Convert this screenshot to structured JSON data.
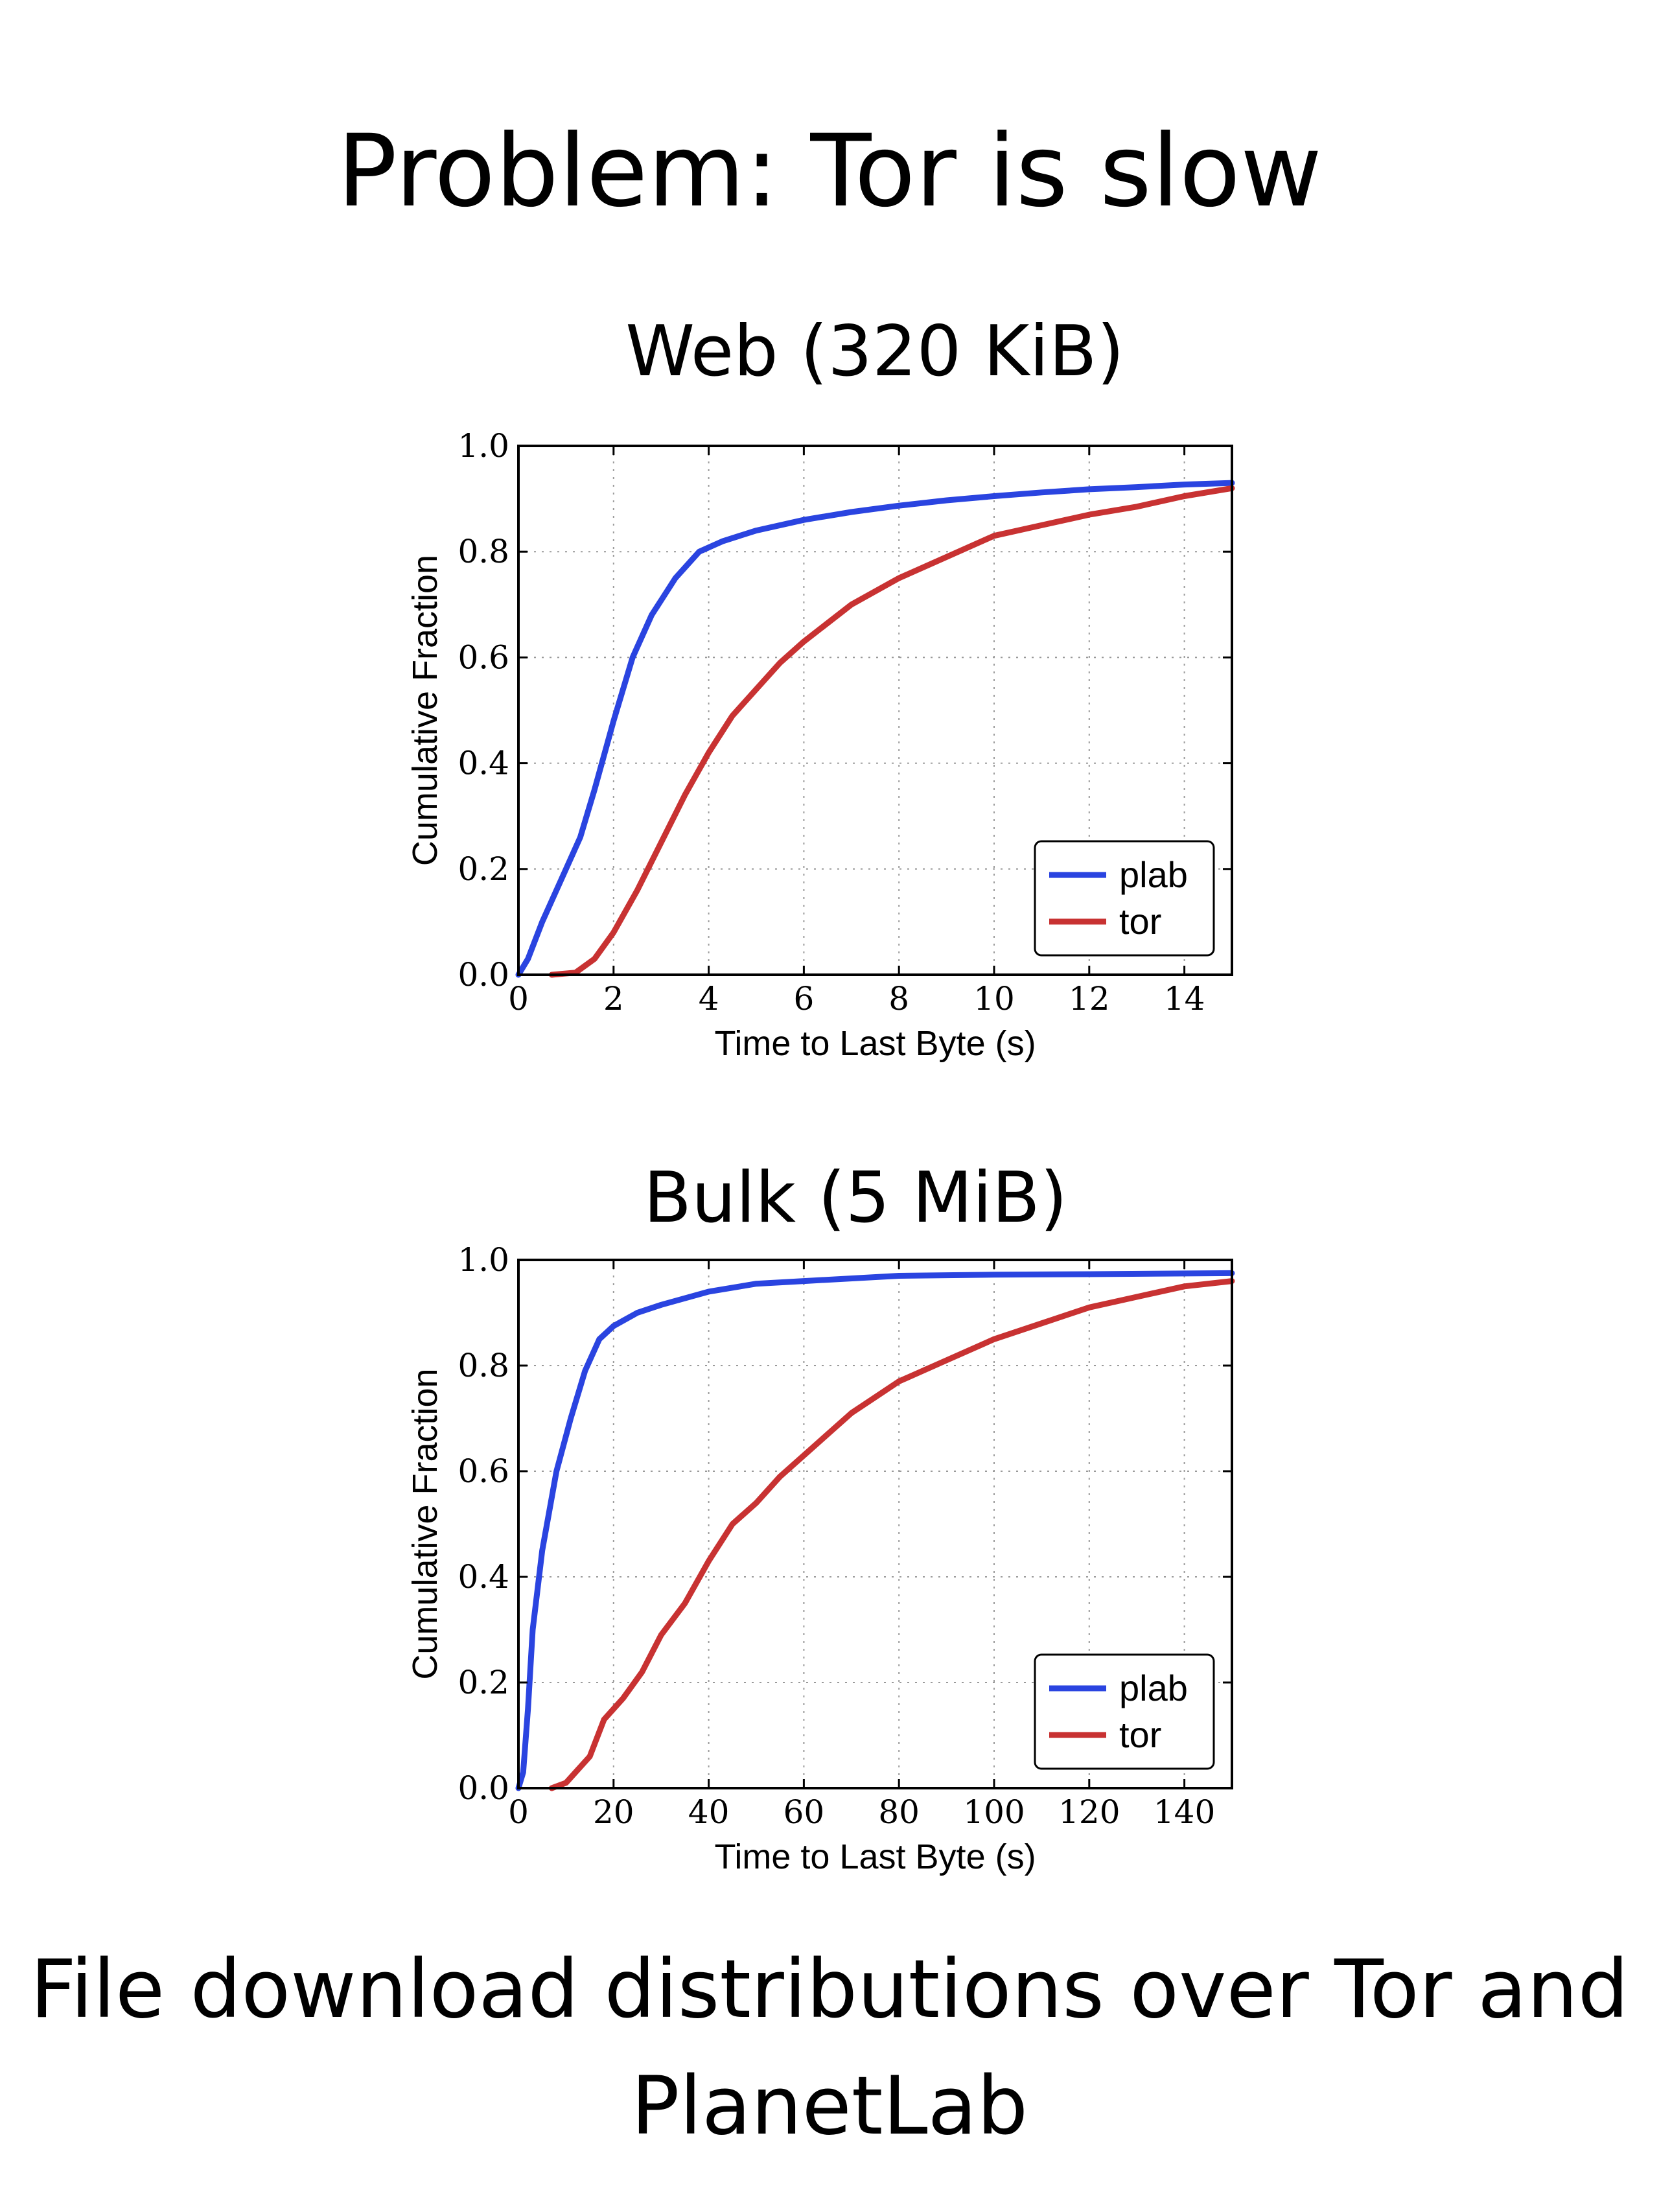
{
  "slide": {
    "title": "Problem: Tor is slow",
    "caption_line1": "File download distributions over Tor and",
    "caption_line2": "PlanetLab"
  },
  "chart_data": [
    {
      "type": "line",
      "title": "Web (320 KiB)",
      "xlabel": "Time to Last Byte (s)",
      "ylabel": "Cumulative Fraction",
      "xlim": [
        0,
        15
      ],
      "ylim": [
        0,
        1.0
      ],
      "xticks": [
        0,
        2,
        4,
        6,
        8,
        10,
        12,
        14
      ],
      "yticks": [
        0.0,
        0.2,
        0.4,
        0.6,
        0.8,
        1.0
      ],
      "grid": true,
      "legend_position": "bottom-right",
      "series": [
        {
          "name": "plab",
          "color": "#2a44e0",
          "points": [
            [
              0,
              0
            ],
            [
              0.2,
              0.03
            ],
            [
              0.5,
              0.1
            ],
            [
              1.0,
              0.2
            ],
            [
              1.3,
              0.26
            ],
            [
              1.6,
              0.35
            ],
            [
              2.0,
              0.48
            ],
            [
              2.4,
              0.6
            ],
            [
              2.8,
              0.68
            ],
            [
              3.3,
              0.75
            ],
            [
              3.8,
              0.8
            ],
            [
              4.3,
              0.82
            ],
            [
              5,
              0.84
            ],
            [
              6,
              0.86
            ],
            [
              7,
              0.875
            ],
            [
              8,
              0.887
            ],
            [
              9,
              0.897
            ],
            [
              10,
              0.905
            ],
            [
              11,
              0.912
            ],
            [
              12,
              0.918
            ],
            [
              13,
              0.922
            ],
            [
              14,
              0.927
            ],
            [
              15,
              0.93
            ]
          ]
        },
        {
          "name": "tor",
          "color": "#c83232",
          "points": [
            [
              0.7,
              0
            ],
            [
              1.2,
              0.004
            ],
            [
              1.6,
              0.03
            ],
            [
              2.0,
              0.08
            ],
            [
              2.5,
              0.16
            ],
            [
              3.0,
              0.25
            ],
            [
              3.5,
              0.34
            ],
            [
              4.0,
              0.42
            ],
            [
              4.5,
              0.49
            ],
            [
              5.0,
              0.54
            ],
            [
              5.5,
              0.59
            ],
            [
              6,
              0.63
            ],
            [
              7,
              0.7
            ],
            [
              8,
              0.75
            ],
            [
              9,
              0.79
            ],
            [
              10,
              0.83
            ],
            [
              11,
              0.85
            ],
            [
              12,
              0.87
            ],
            [
              13,
              0.885
            ],
            [
              14,
              0.905
            ],
            [
              15,
              0.92
            ]
          ]
        }
      ]
    },
    {
      "type": "line",
      "title": "Bulk (5 MiB)",
      "xlabel": "Time to Last Byte (s)",
      "ylabel": "Cumulative Fraction",
      "xlim": [
        0,
        150
      ],
      "ylim": [
        0,
        1.0
      ],
      "xticks": [
        0,
        20,
        40,
        60,
        80,
        100,
        120,
        140
      ],
      "yticks": [
        0.0,
        0.2,
        0.4,
        0.6,
        0.8,
        1.0
      ],
      "grid": true,
      "legend_position": "bottom-right",
      "series": [
        {
          "name": "plab",
          "color": "#2a44e0",
          "points": [
            [
              0,
              0
            ],
            [
              1,
              0.03
            ],
            [
              2,
              0.15
            ],
            [
              3,
              0.3
            ],
            [
              5,
              0.45
            ],
            [
              8,
              0.6
            ],
            [
              11,
              0.7
            ],
            [
              14,
              0.79
            ],
            [
              17,
              0.85
            ],
            [
              20,
              0.875
            ],
            [
              25,
              0.9
            ],
            [
              30,
              0.915
            ],
            [
              40,
              0.94
            ],
            [
              50,
              0.955
            ],
            [
              60,
              0.96
            ],
            [
              80,
              0.97
            ],
            [
              100,
              0.972
            ],
            [
              120,
              0.973
            ],
            [
              150,
              0.975
            ]
          ]
        },
        {
          "name": "tor",
          "color": "#c83232",
          "points": [
            [
              7,
              0
            ],
            [
              10,
              0.01
            ],
            [
              15,
              0.06
            ],
            [
              18,
              0.13
            ],
            [
              22,
              0.17
            ],
            [
              26,
              0.22
            ],
            [
              30,
              0.29
            ],
            [
              35,
              0.35
            ],
            [
              40,
              0.43
            ],
            [
              45,
              0.5
            ],
            [
              50,
              0.54
            ],
            [
              55,
              0.59
            ],
            [
              60,
              0.63
            ],
            [
              70,
              0.71
            ],
            [
              80,
              0.77
            ],
            [
              90,
              0.81
            ],
            [
              100,
              0.85
            ],
            [
              110,
              0.88
            ],
            [
              120,
              0.91
            ],
            [
              130,
              0.93
            ],
            [
              140,
              0.95
            ],
            [
              150,
              0.96
            ]
          ]
        }
      ]
    }
  ]
}
